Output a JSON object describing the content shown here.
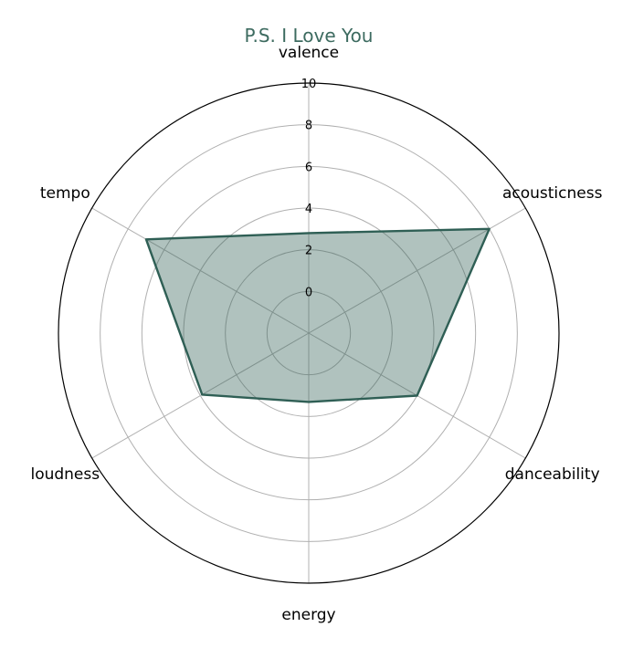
{
  "chart_data": {
    "type": "radar",
    "title": "P.S. I Love You",
    "axes": [
      "valence",
      "acousticness",
      "danceability",
      "energy",
      "loudness",
      "tempo"
    ],
    "values": [
      2.8,
      8.0,
      4.0,
      1.3,
      3.9,
      7.0
    ],
    "rlim": [
      -2,
      10
    ],
    "rticks": [
      0,
      2,
      4,
      6,
      8,
      10
    ],
    "grid": true,
    "line_color": "#2f5f55",
    "fill_color": "#2f5f55",
    "fill_opacity": 0.38,
    "title_color": "#3d6b60"
  }
}
